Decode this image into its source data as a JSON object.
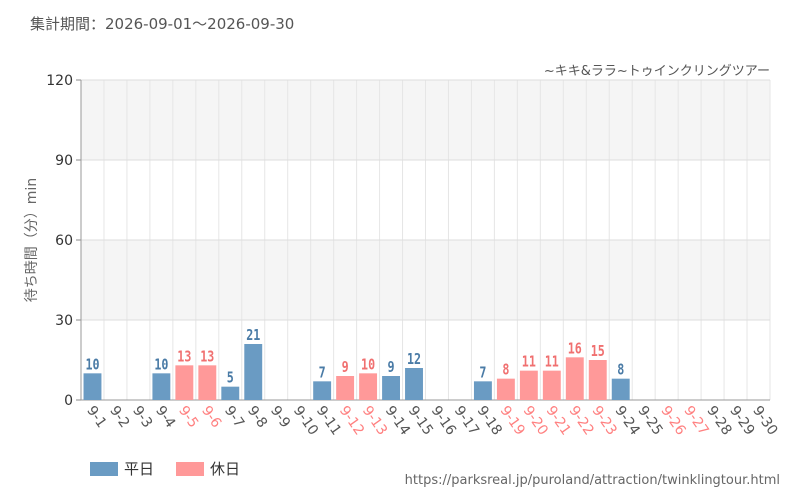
{
  "header": {
    "period_label": "集計期間：2026-09-01～2026-09-30"
  },
  "source_url": "https://parksreal.jp/puroland/attraction/twinklingtour.html",
  "legend": [
    {
      "label": "平日",
      "color": "#6a9bc3"
    },
    {
      "label": "休日",
      "color": "#ff9999"
    }
  ],
  "chart_data": {
    "type": "bar",
    "title": "~キキ&ララ~トゥインクリングツアー",
    "ylabel": "待ち時間（分）min",
    "ylim": [
      0,
      120
    ],
    "yticks": [
      0,
      30,
      60,
      90,
      120
    ],
    "grid": true,
    "categories": [
      "9-1",
      "9-2",
      "9-3",
      "9-4",
      "9-5",
      "9-6",
      "9-7",
      "9-8",
      "9-9",
      "9-10",
      "9-11",
      "9-12",
      "9-13",
      "9-14",
      "9-15",
      "9-16",
      "9-17",
      "9-18",
      "9-19",
      "9-20",
      "9-21",
      "9-22",
      "9-23",
      "9-24",
      "9-25",
      "9-26",
      "9-27",
      "9-28",
      "9-29",
      "9-30"
    ],
    "values": [
      10,
      null,
      null,
      10,
      13,
      13,
      5,
      21,
      null,
      null,
      7,
      9,
      10,
      9,
      12,
      null,
      null,
      7,
      8,
      11,
      11,
      16,
      15,
      8,
      null,
      null,
      null,
      null,
      null,
      null
    ],
    "day_type": [
      "平日",
      "平日",
      "平日",
      "平日",
      "休日",
      "休日",
      "平日",
      "平日",
      "平日",
      "平日",
      "平日",
      "休日",
      "休日",
      "平日",
      "平日",
      "平日",
      "平日",
      "平日",
      "休日",
      "休日",
      "休日",
      "休日",
      "休日",
      "平日",
      "平日",
      "休日",
      "休日",
      "平日",
      "平日",
      "平日"
    ],
    "colors": {
      "平日": "#6a9bc3",
      "休日": "#ff9999",
      "weekday_label": "#555555",
      "holiday_label": "#ff8080",
      "weekday_value": "#4a7ba6",
      "holiday_value": "#f07070"
    }
  }
}
